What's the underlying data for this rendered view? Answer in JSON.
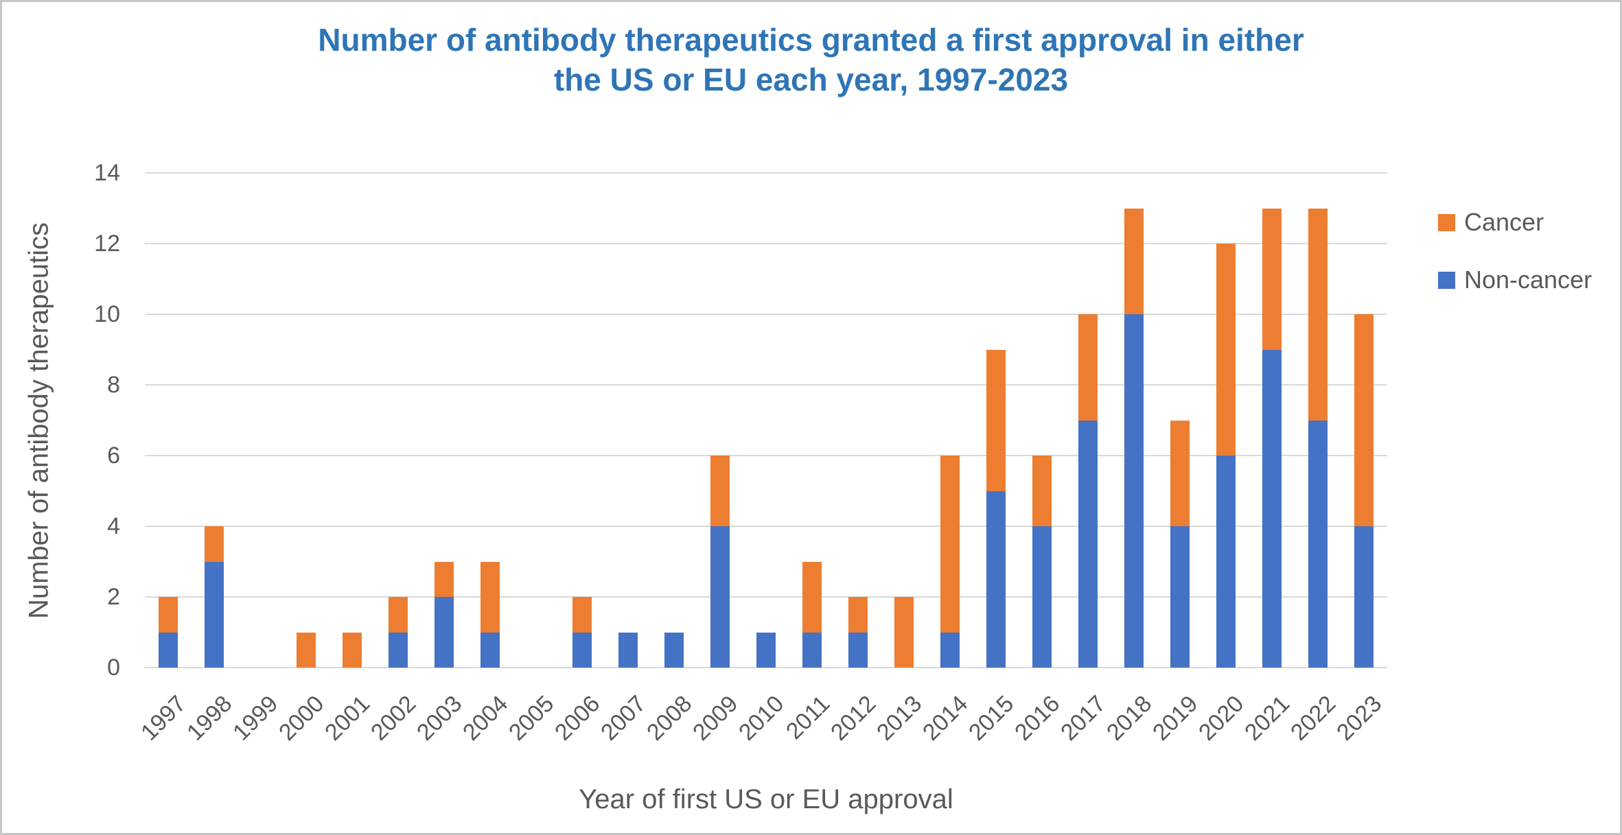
{
  "title": {
    "line1": "Number of antibody therapeutics granted a first approval in either",
    "line2": "the US or EU each year, 1997-2023"
  },
  "y_axis": {
    "title": "Number of antibody therapeutics",
    "ticks": [
      0,
      2,
      4,
      6,
      8,
      10,
      12,
      14
    ]
  },
  "x_axis": {
    "title": "Year of first US or EU approval"
  },
  "legend": {
    "items": [
      {
        "label": "Cancer",
        "color": "#ED7D31"
      },
      {
        "label": "Non-cancer",
        "color": "#4472C4"
      }
    ]
  },
  "colors": {
    "title_text": "#2E75B6",
    "axis_text": "#595959",
    "gridline": "#D9D9D9",
    "cancer": "#ED7D31",
    "non_cancer": "#4472C4",
    "frame": "#C6C6C6"
  },
  "chart_data": {
    "type": "bar",
    "stacked": true,
    "title": "Number of antibody therapeutics granted a first approval in either the US or EU each year, 1997-2023",
    "xlabel": "Year of first US or EU approval",
    "ylabel": "Number of antibody therapeutics",
    "ylim": [
      0,
      14
    ],
    "grid": "horizontal",
    "legend_position": "right",
    "categories": [
      "1997",
      "1998",
      "1999",
      "2000",
      "2001",
      "2002",
      "2003",
      "2004",
      "2005",
      "2006",
      "2007",
      "2008",
      "2009",
      "2010",
      "2011",
      "2012",
      "2013",
      "2014",
      "2015",
      "2016",
      "2017",
      "2018",
      "2019",
      "2020",
      "2021",
      "2022",
      "2023"
    ],
    "series": [
      {
        "name": "Non-cancer",
        "color": "#4472C4",
        "values": [
          1,
          3,
          0,
          0,
          0,
          1,
          2,
          1,
          0,
          1,
          1,
          1,
          4,
          1,
          1,
          1,
          0,
          1,
          5,
          4,
          7,
          10,
          4,
          6,
          9,
          7,
          4
        ]
      },
      {
        "name": "Cancer",
        "color": "#ED7D31",
        "values": [
          1,
          1,
          0,
          1,
          1,
          1,
          1,
          2,
          0,
          1,
          0,
          0,
          2,
          0,
          2,
          1,
          2,
          5,
          4,
          2,
          3,
          3,
          3,
          6,
          4,
          6,
          6
        ]
      }
    ],
    "totals": [
      2,
      4,
      0,
      1,
      1,
      2,
      3,
      3,
      0,
      2,
      1,
      1,
      6,
      1,
      3,
      2,
      2,
      6,
      9,
      6,
      10,
      13,
      7,
      12,
      13,
      13,
      10
    ]
  }
}
